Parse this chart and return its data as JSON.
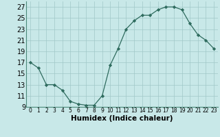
{
  "x": [
    0,
    1,
    2,
    3,
    4,
    5,
    6,
    7,
    8,
    9,
    10,
    11,
    12,
    13,
    14,
    15,
    16,
    17,
    18,
    19,
    20,
    21,
    22,
    23
  ],
  "y": [
    17,
    16,
    13,
    13,
    12,
    10,
    9.5,
    9.3,
    9.3,
    11,
    16.5,
    19.5,
    23,
    24.5,
    25.5,
    25.5,
    26.5,
    27,
    27,
    26.5,
    24,
    22,
    21,
    19.5
  ],
  "line_color": "#2e6b5e",
  "marker_color": "#2e6b5e",
  "bg_color": "#c8e8e8",
  "grid_color": "#a0c8c8",
  "xlabel": "Humidex (Indice chaleur)",
  "ylim": [
    9,
    28
  ],
  "xlim": [
    -0.5,
    23.5
  ],
  "yticks": [
    9,
    11,
    13,
    15,
    17,
    19,
    21,
    23,
    25,
    27
  ],
  "xticks": [
    0,
    1,
    2,
    3,
    4,
    5,
    6,
    7,
    8,
    9,
    10,
    11,
    12,
    13,
    14,
    15,
    16,
    17,
    18,
    19,
    20,
    21,
    22,
    23
  ],
  "xlabel_fontsize": 7.5,
  "tick_fontsize": 7
}
